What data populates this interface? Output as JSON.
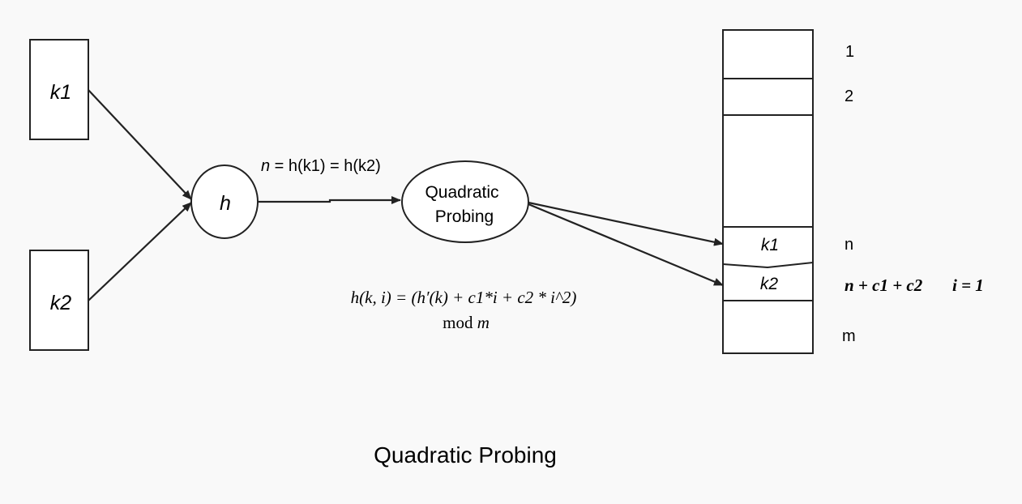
{
  "keys": {
    "k1": "k1",
    "k2": "k2"
  },
  "hash_node": {
    "label": "h"
  },
  "collision_label": {
    "var": "n",
    "rest": " = h(k1) = h(k2)"
  },
  "probing_node": {
    "line1": "Quadratic",
    "line2": "Probing"
  },
  "formula": {
    "line1": "h(k, i) = (h′(k) + c1*i + c2  * i^2)",
    "line2_prefix": "mod ",
    "line2_var": "m"
  },
  "table": {
    "slots": [
      "",
      "",
      "",
      "k1",
      "k2",
      ""
    ],
    "index_labels": {
      "first": "1",
      "second": "2",
      "n": "n",
      "probe": "n + c1 + c2",
      "probe_i": "i = 1",
      "last": "m"
    }
  },
  "caption": "Quadratic Probing",
  "colors": {
    "stroke": "#222222",
    "background": "#f9f9f9",
    "shape_fill": "#ffffff"
  }
}
